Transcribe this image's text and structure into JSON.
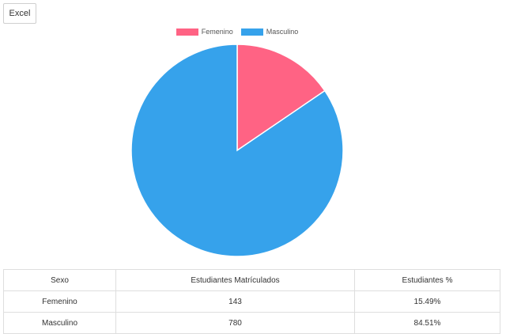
{
  "toolbar": {
    "excel_label": "Excel"
  },
  "chart_data": {
    "type": "pie",
    "labels": [
      "Femenino",
      "Masculino"
    ],
    "values": [
      143,
      780
    ],
    "colors": [
      "#ff6384",
      "#36a2eb"
    ],
    "legend_position": "top"
  },
  "table": {
    "headers": [
      "Sexo",
      "Estudiantes Matrículados",
      "Estudiantes %"
    ],
    "rows": [
      [
        "Femenino",
        "143",
        "15.49%"
      ],
      [
        "Masculino",
        "780",
        "84.51%"
      ]
    ]
  }
}
